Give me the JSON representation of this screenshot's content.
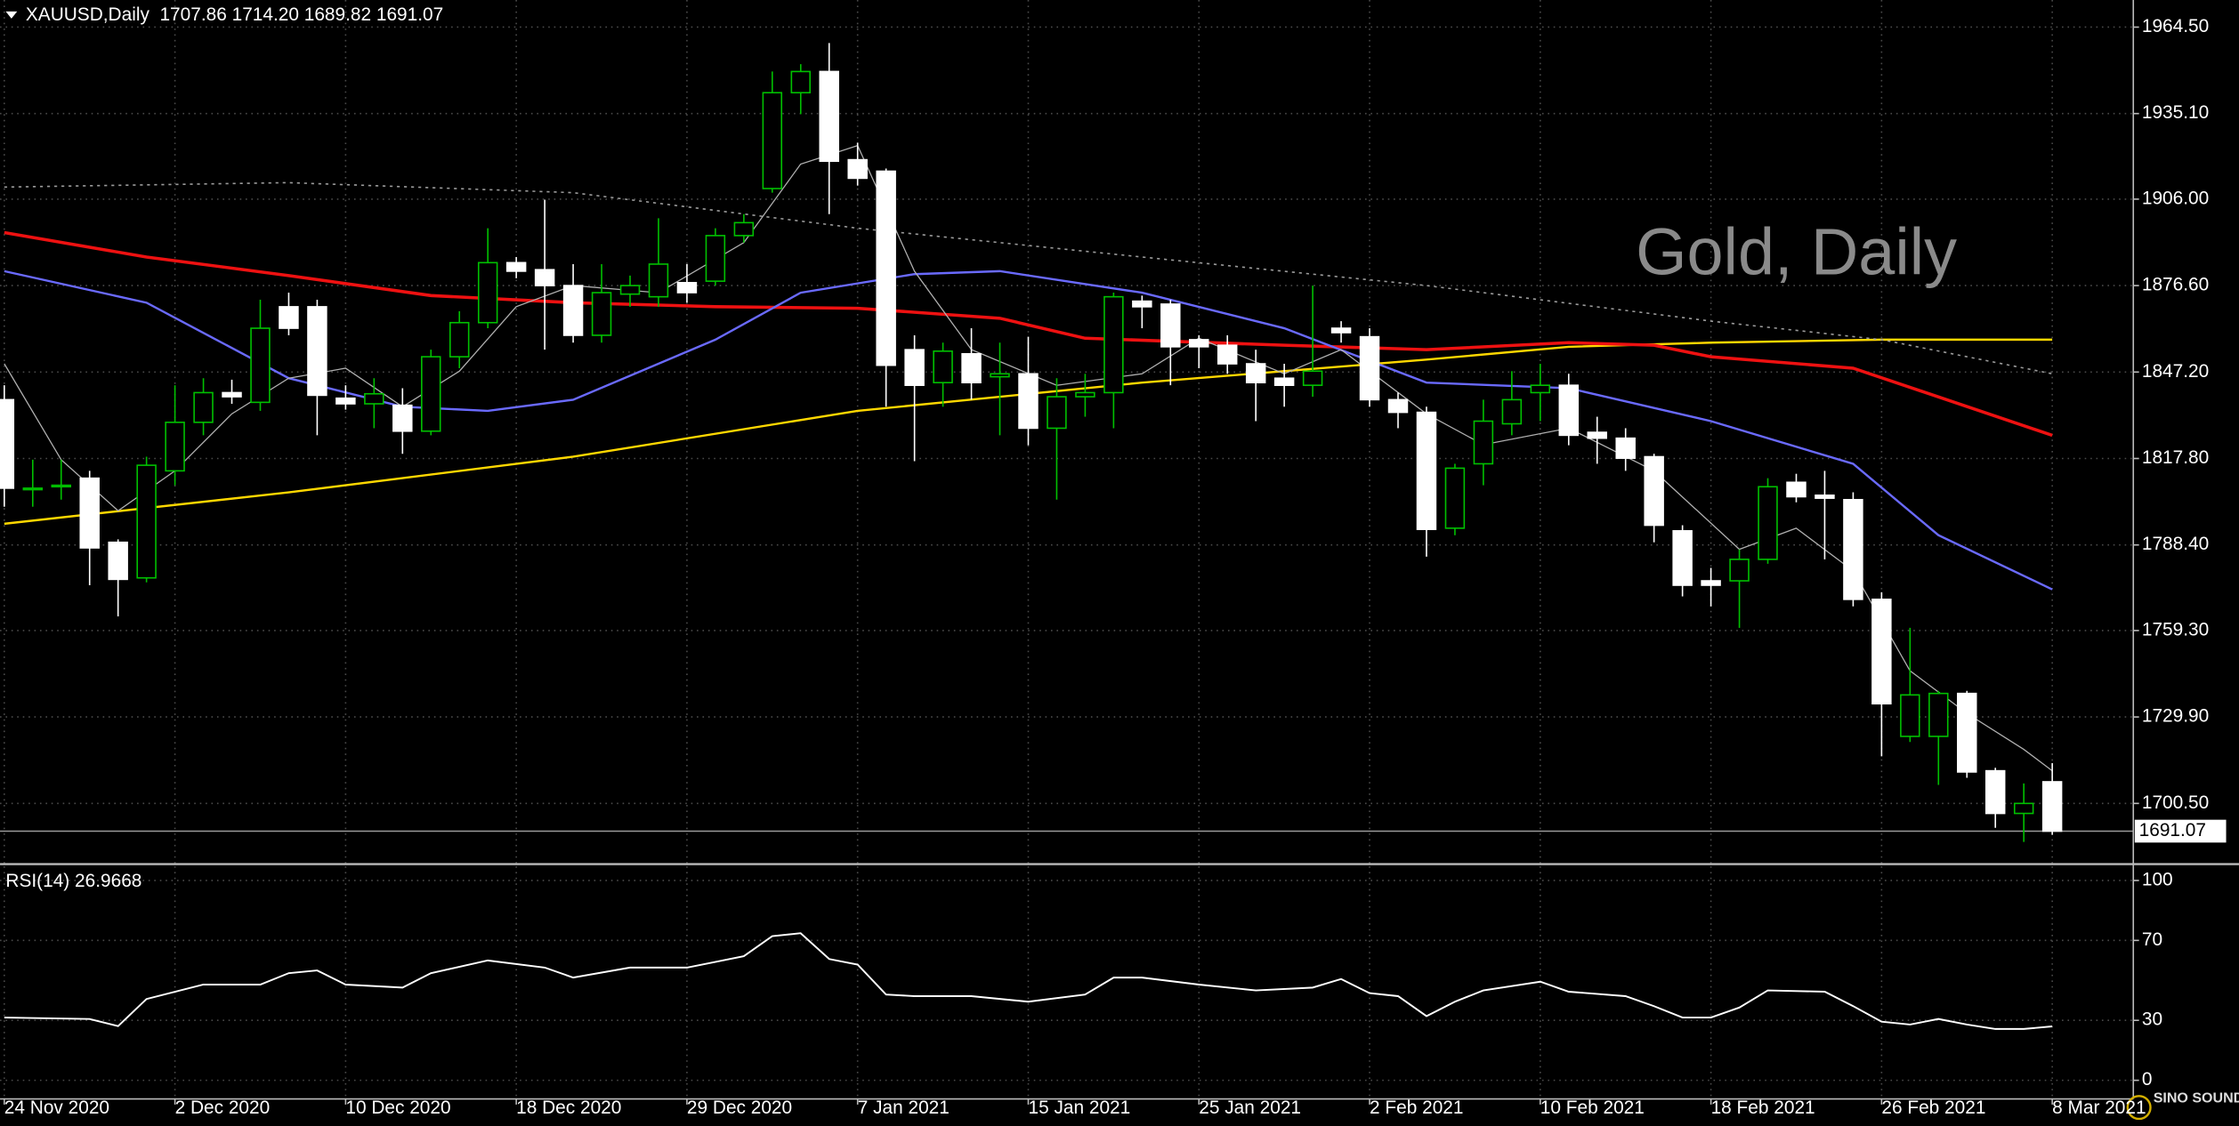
{
  "chart_data": [
    {
      "type": "candlestick",
      "header": "XAUUSD,Daily  1707.86 1714.20 1689.82 1691.07",
      "annotation": "Gold, Daily",
      "categories": [
        "24 Nov 2020",
        null,
        null,
        null,
        null,
        null,
        "2 Dec 2020",
        null,
        null,
        null,
        null,
        null,
        "10 Dec 2020",
        null,
        null,
        null,
        null,
        null,
        "18 Dec 2020",
        null,
        null,
        null,
        null,
        null,
        "29 Dec 2020",
        null,
        null,
        null,
        null,
        null,
        "7 Jan 2021",
        null,
        null,
        null,
        null,
        null,
        "15 Jan 2021",
        null,
        null,
        null,
        null,
        null,
        "25 Jan 2021",
        null,
        null,
        null,
        null,
        null,
        "2 Feb 2021",
        null,
        null,
        null,
        null,
        null,
        "10 Feb 2021",
        null,
        null,
        null,
        null,
        null,
        "18 Feb 2021",
        null,
        null,
        null,
        null,
        null,
        "26 Feb 2021",
        null,
        null,
        null,
        null,
        null,
        "8 Mar 2021"
      ],
      "open": [
        1837.8,
        1807.2,
        1808.2,
        1811.1,
        1789.3,
        1777.2,
        1813.6,
        1830.1,
        1840.2,
        1836.9,
        1869.4,
        1869.4,
        1838.3,
        1836.4,
        1835.9,
        1827.1,
        1852.4,
        1864.0,
        1884.4,
        1882.0,
        1876.6,
        1859.7,
        1873.7,
        1872.8,
        1877.6,
        1878.1,
        1893.6,
        1909.6,
        1942.2,
        1949.4,
        1919.4,
        1915.5,
        1854.8,
        1843.6,
        1853.4,
        1845.6,
        1846.6,
        1828.1,
        1838.8,
        1840.2,
        1871.3,
        1870.3,
        1858.2,
        1856.3,
        1850.0,
        1845.1,
        1842.7,
        1862.1,
        1859.2,
        1837.8,
        1833.5,
        1794.1,
        1816.0,
        1829.6,
        1840.2,
        1842.7,
        1826.7,
        1824.7,
        1818.4,
        1793.2,
        1776.2,
        1776.2,
        1783.5,
        1809.7,
        1805.3,
        1803.8,
        1769.9,
        1723.3,
        1723.3,
        1737.9,
        1711.6,
        1697.1,
        1707.86
      ],
      "high": [
        1842.7,
        1817.4,
        1817.4,
        1813.6,
        1790.3,
        1818.4,
        1842.7,
        1845.1,
        1844.6,
        1871.8,
        1874.2,
        1871.8,
        1842.7,
        1845.1,
        1841.7,
        1854.8,
        1867.9,
        1896.1,
        1886.3,
        1905.8,
        1883.9,
        1883.9,
        1880.0,
        1899.5,
        1883.9,
        1896.1,
        1900.9,
        1949.4,
        1951.9,
        1959.1,
        1925.2,
        1916.4,
        1859.7,
        1857.2,
        1862.1,
        1857.2,
        1859.2,
        1845.1,
        1846.6,
        1874.2,
        1873.2,
        1871.8,
        1859.7,
        1859.7,
        1854.8,
        1850.0,
        1876.6,
        1864.5,
        1862.1,
        1840.2,
        1835.4,
        1816.0,
        1837.8,
        1847.5,
        1850.0,
        1846.6,
        1832.0,
        1828.1,
        1819.4,
        1795.1,
        1780.6,
        1786.9,
        1811.1,
        1812.6,
        1813.6,
        1806.3,
        1772.3,
        1760.2,
        1738.8,
        1738.8,
        1712.6,
        1707.3,
        1714.2
      ],
      "low": [
        1801.4,
        1801.4,
        1803.8,
        1774.7,
        1764.1,
        1775.7,
        1808.7,
        1825.7,
        1836.4,
        1834.0,
        1859.7,
        1825.7,
        1834.4,
        1828.1,
        1819.4,
        1825.7,
        1848.5,
        1862.1,
        1879.1,
        1854.8,
        1857.2,
        1857.2,
        1869.4,
        1869.4,
        1870.8,
        1876.6,
        1891.2,
        1908.2,
        1934.9,
        1900.9,
        1910.6,
        1835.4,
        1816.9,
        1835.4,
        1837.8,
        1825.7,
        1822.3,
        1803.8,
        1832.0,
        1828.1,
        1862.1,
        1842.7,
        1848.5,
        1846.6,
        1830.5,
        1835.4,
        1838.8,
        1857.2,
        1835.4,
        1828.1,
        1784.4,
        1791.7,
        1808.7,
        1825.7,
        1830.5,
        1822.3,
        1816.0,
        1813.6,
        1789.3,
        1770.9,
        1767.5,
        1760.2,
        1782.0,
        1802.9,
        1783.5,
        1767.5,
        1716.5,
        1721.4,
        1706.8,
        1709.2,
        1692.2,
        1687.4,
        1689.82
      ],
      "close": [
        1807.7,
        1807.7,
        1808.7,
        1787.4,
        1776.7,
        1815.5,
        1830.1,
        1840.2,
        1838.8,
        1862.1,
        1862.1,
        1839.3,
        1836.4,
        1839.8,
        1827.1,
        1852.4,
        1864.0,
        1884.4,
        1881.5,
        1876.6,
        1859.7,
        1874.2,
        1876.6,
        1883.9,
        1874.2,
        1893.6,
        1898.0,
        1942.2,
        1949.4,
        1918.9,
        1913.1,
        1849.5,
        1842.7,
        1854.3,
        1843.6,
        1846.6,
        1828.1,
        1838.8,
        1840.2,
        1872.8,
        1869.4,
        1855.8,
        1855.8,
        1850.0,
        1843.6,
        1842.7,
        1847.5,
        1860.6,
        1837.8,
        1833.5,
        1793.7,
        1814.5,
        1830.5,
        1837.8,
        1842.7,
        1825.7,
        1824.7,
        1817.9,
        1795.1,
        1774.7,
        1774.7,
        1783.5,
        1808.2,
        1804.8,
        1804.3,
        1769.9,
        1734.4,
        1737.4,
        1737.9,
        1711.2,
        1697.1,
        1700.5,
        1691.07
      ],
      "bull_color": "#00c000",
      "bear_color": "#ffffff",
      "series": [
        {
          "color": "#ffd700",
          "width": 1.5,
          "dash": false,
          "x": [
            0,
            10,
            20,
            30,
            40,
            50,
            55,
            60,
            66,
            72
          ],
          "values": [
            1795.6,
            1806.3,
            1818.4,
            1834.0,
            1843.6,
            1851.4,
            1855.8,
            1857.2,
            1858.2,
            1858.2
          ]
        },
        {
          "color": "#ee1111",
          "width": 2.2,
          "dash": false,
          "x": [
            0,
            5,
            10,
            15,
            20,
            25,
            30,
            35,
            38,
            45,
            50,
            55,
            58,
            60,
            65,
            72
          ],
          "values": [
            1894.6,
            1886.3,
            1880.0,
            1873.2,
            1870.8,
            1869.4,
            1868.9,
            1865.5,
            1858.7,
            1856.3,
            1854.8,
            1857.2,
            1856.3,
            1852.4,
            1848.5,
            1825.7
          ]
        },
        {
          "color": "#6a6aff",
          "width": 1.5,
          "dash": false,
          "x": [
            0,
            5,
            10,
            14,
            17,
            20,
            25,
            28,
            32,
            35,
            40,
            45,
            50,
            55,
            60,
            65,
            68,
            72
          ],
          "values": [
            1881.5,
            1870.8,
            1845.1,
            1835.4,
            1834.0,
            1837.8,
            1858.2,
            1874.2,
            1880.5,
            1881.5,
            1874.2,
            1862.1,
            1843.6,
            1841.7,
            1830.5,
            1816.0,
            1791.7,
            1773.3
          ]
        },
        {
          "color": "#9a9a9a",
          "width": 1,
          "dash": true,
          "x": [
            0,
            10,
            20,
            30,
            40,
            50,
            60,
            66,
            72
          ],
          "values": [
            1910.1,
            1911.6,
            1908.2,
            1896.1,
            1886.3,
            1876.6,
            1864.5,
            1858.2,
            1846.6
          ]
        },
        {
          "color": "#b0b0b0",
          "width": 0.8,
          "dash": false,
          "x": [
            0,
            2,
            4,
            6,
            8,
            10,
            12,
            14,
            16,
            18,
            20,
            23,
            26,
            28,
            30,
            32,
            34,
            37,
            40,
            42,
            45,
            47,
            50,
            52,
            55,
            58,
            61,
            63,
            65,
            67,
            69,
            71,
            72
          ],
          "values": [
            1850.0,
            1817.4,
            1800.0,
            1813.6,
            1833.0,
            1845.1,
            1848.5,
            1835.4,
            1847.5,
            1869.4,
            1876.6,
            1874.2,
            1891.2,
            1917.9,
            1924.2,
            1881.5,
            1854.8,
            1842.7,
            1846.6,
            1858.7,
            1846.6,
            1854.8,
            1833.0,
            1822.5,
            1828.1,
            1813.6,
            1786.9,
            1794.1,
            1779.6,
            1745.6,
            1731.1,
            1718.9,
            1711.6
          ]
        }
      ],
      "last_price": {
        "value": 1691.07,
        "label": "1691.07"
      },
      "xlim": [
        -0.15,
        74.85
      ],
      "ylim": [
        1680.1,
        1973.72
      ],
      "yticks": [
        {
          "value": 1964.5,
          "label": "1964.50"
        },
        {
          "value": 1935.1,
          "label": "1935.10"
        },
        {
          "value": 1906,
          "label": "1906.00"
        },
        {
          "value": 1876.6,
          "label": "1876.60"
        },
        {
          "value": 1847.2,
          "label": "1847.20"
        },
        {
          "value": 1817.8,
          "label": "1817.80"
        },
        {
          "value": 1788.4,
          "label": "1788.40"
        },
        {
          "value": 1759.3,
          "label": "1759.30"
        },
        {
          "value": 1729.9,
          "label": "1729.90"
        },
        {
          "value": 1700.5,
          "label": "1700.50"
        }
      ],
      "grid": true,
      "logo": "SINO SOUND"
    },
    {
      "type": "line",
      "title": "RSI(14) 26.9668",
      "series": [
        {
          "color": "#ffffff",
          "width": 1.2,
          "dash": false,
          "x": [
            0,
            3,
            4,
            5,
            7,
            9,
            10,
            11,
            12,
            14,
            15,
            17,
            19,
            20,
            22,
            24,
            26,
            27,
            28,
            29,
            30,
            31,
            32,
            34,
            36,
            38,
            39,
            40,
            42,
            44,
            46,
            47,
            48,
            49,
            50,
            51,
            52,
            54,
            55,
            57,
            58,
            59,
            60,
            61,
            62,
            64,
            65,
            66,
            67,
            68,
            69,
            70,
            71,
            72
          ],
          "values": [
            31.4,
            30.7,
            27.1,
            40.7,
            47.9,
            47.9,
            53.6,
            55,
            47.9,
            46.4,
            53.6,
            60,
            56.4,
            51.4,
            56.4,
            56.4,
            62.1,
            72.1,
            73.6,
            60.7,
            57.9,
            42.9,
            42.1,
            42.1,
            39.3,
            42.9,
            51.4,
            51.4,
            47.9,
            45,
            46.4,
            50.7,
            43.6,
            42.1,
            32.1,
            39.3,
            45,
            49.3,
            44.3,
            42.1,
            37.1,
            31.4,
            31.4,
            36.4,
            45,
            44.3,
            37.1,
            29.3,
            27.9,
            30.7,
            27.9,
            25.7,
            25.7,
            26.9668
          ]
        }
      ],
      "xlim": [
        -0.15,
        74.85
      ],
      "ylim": [
        -9.3,
        107.1
      ],
      "yticks": [
        100,
        70,
        30,
        0
      ],
      "grid": true
    }
  ]
}
